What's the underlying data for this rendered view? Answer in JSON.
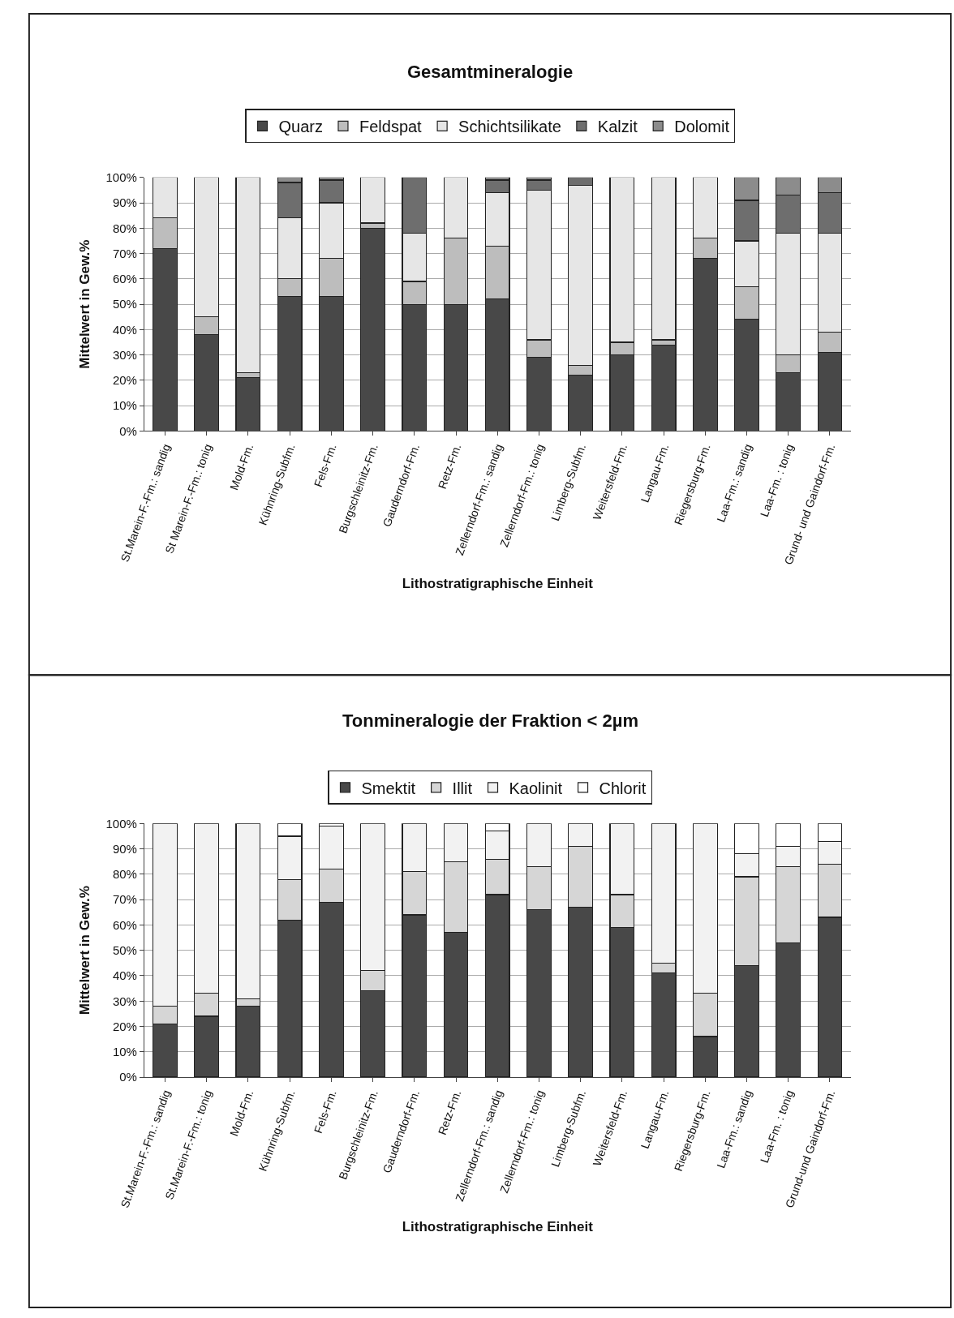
{
  "chart_data": [
    {
      "type": "bar",
      "title": "Gesamtmineralogie",
      "xlabel": "Lithostratigraphische Einheit",
      "ylabel": "Mittelwert in Gew.%",
      "stacked": true,
      "legend": "top",
      "grid": "y",
      "categories": [
        "St.Marein-F.-Fm.: sandig",
        "St Marein-F.-Fm.: tonig",
        "Mold-Fm.",
        "Kühnring-Subfm.",
        "Fels-Fm.",
        "Burgschleinitz-Fm.",
        "Gauderndorf-Fm.",
        "Retz-Fm.",
        "Zellerndorf-Fm.: sandig",
        "Zellerndorf-Fm.: tonig",
        "Limberg-Subfm.",
        "Weitersfeld-Fm.",
        "Langau-Fm.",
        "Riegersburg-Fm.",
        "Laa-Fm.: sandig",
        "Laa-Fm. : tonig",
        "Grund- und Gaindorf-Fm."
      ],
      "ylim": [
        0,
        100
      ],
      "yticks": [
        {
          "value": 0,
          "label": "0%"
        },
        {
          "value": 10,
          "label": "10%"
        },
        {
          "value": 20,
          "label": "20%"
        },
        {
          "value": 30,
          "label": "30%"
        },
        {
          "value": 40,
          "label": "40%"
        },
        {
          "value": 50,
          "label": "50%"
        },
        {
          "value": 60,
          "label": "60%"
        },
        {
          "value": 70,
          "label": "70%"
        },
        {
          "value": 80,
          "label": "80%"
        },
        {
          "value": 90,
          "label": "90%"
        },
        {
          "value": 100,
          "label": "100%"
        }
      ],
      "series": [
        {
          "name": "Quarz",
          "color": "#484848",
          "values": [
            72,
            38,
            21,
            53,
            53,
            80,
            50,
            50,
            52,
            29,
            22,
            30,
            34,
            68,
            44,
            23,
            31
          ]
        },
        {
          "name": "Feldspat",
          "color": "#bdbdbd",
          "values": [
            12,
            7,
            2,
            7,
            15,
            2,
            9,
            26,
            21,
            7,
            4,
            5,
            2,
            8,
            13,
            7,
            8
          ]
        },
        {
          "name": "Schichtsilikate",
          "color": "#e6e6e6",
          "values": [
            16,
            55,
            77,
            24,
            22,
            18,
            19,
            24,
            21,
            59,
            71,
            65,
            64,
            24,
            18,
            48,
            39
          ]
        },
        {
          "name": "Kalzit",
          "color": "#6e6e6e",
          "values": [
            0,
            0,
            0,
            14,
            9,
            0,
            22,
            0,
            5,
            4,
            3,
            0,
            0,
            0,
            16,
            15,
            16
          ]
        },
        {
          "name": "Dolomit",
          "color": "#8c8c8c",
          "values": [
            0,
            0,
            0,
            2,
            1,
            0,
            0,
            0,
            1,
            1,
            0,
            0,
            0,
            0,
            9,
            7,
            6
          ]
        }
      ]
    },
    {
      "type": "bar",
      "title": "Tonmineralogie der Fraktion < 2µm",
      "xlabel": "Lithostratigraphische Einheit",
      "ylabel": "Mittelwert in Gew.%",
      "stacked": true,
      "legend": "top",
      "grid": "y",
      "categories": [
        "St.Marein-F.-Fm.: sandig",
        "St.Marein-F.-Fm.: tonig",
        "Mold-Fm.",
        "Kühnring-Subfm.",
        "Fels-Fm.",
        "Burgschleinitz-Fm.",
        "Gauderndorf-Fm.",
        "Retz-Fm.",
        "Zellerndorf-Fm.: sandig",
        "Zellerndorf-Fm.: tonig",
        "Limberg-Subfm.",
        "Weitersfeld-Fm.",
        "Langau-Fm.",
        "Riegersburg-Fm.",
        "Laa-Fm.: sandig",
        "Laa-Fm. : tonig",
        "Grund-und Gaindorf-Fm."
      ],
      "ylim": [
        0,
        100
      ],
      "yticks": [
        {
          "value": 0,
          "label": "0%"
        },
        {
          "value": 10,
          "label": "10%"
        },
        {
          "value": 20,
          "label": "20%"
        },
        {
          "value": 30,
          "label": "30%"
        },
        {
          "value": 40,
          "label": "40%"
        },
        {
          "value": 50,
          "label": "50%"
        },
        {
          "value": 60,
          "label": "60%"
        },
        {
          "value": 70,
          "label": "70%"
        },
        {
          "value": 80,
          "label": "80%"
        },
        {
          "value": 90,
          "label": "90%"
        },
        {
          "value": 100,
          "label": "100%"
        }
      ],
      "series": [
        {
          "name": "Smektit",
          "color": "#484848",
          "values": [
            21,
            24,
            28,
            62,
            69,
            34,
            64,
            57,
            72,
            66,
            67,
            59,
            41,
            16,
            44,
            53,
            63
          ]
        },
        {
          "name": "Illit",
          "color": "#d6d6d6",
          "values": [
            7,
            9,
            3,
            16,
            13,
            8,
            17,
            28,
            14,
            17,
            24,
            13,
            4,
            17,
            35,
            30,
            21
          ]
        },
        {
          "name": "Kaolinit",
          "color": "#f2f2f2",
          "values": [
            72,
            67,
            69,
            17,
            17,
            58,
            19,
            15,
            11,
            17,
            9,
            28,
            55,
            67,
            9,
            8,
            9
          ]
        },
        {
          "name": "Chlorit",
          "color": "#ffffff",
          "values": [
            0,
            0,
            0,
            5,
            1,
            0,
            0,
            0,
            3,
            0,
            0,
            0,
            0,
            0,
            12,
            9,
            7
          ]
        }
      ]
    }
  ]
}
